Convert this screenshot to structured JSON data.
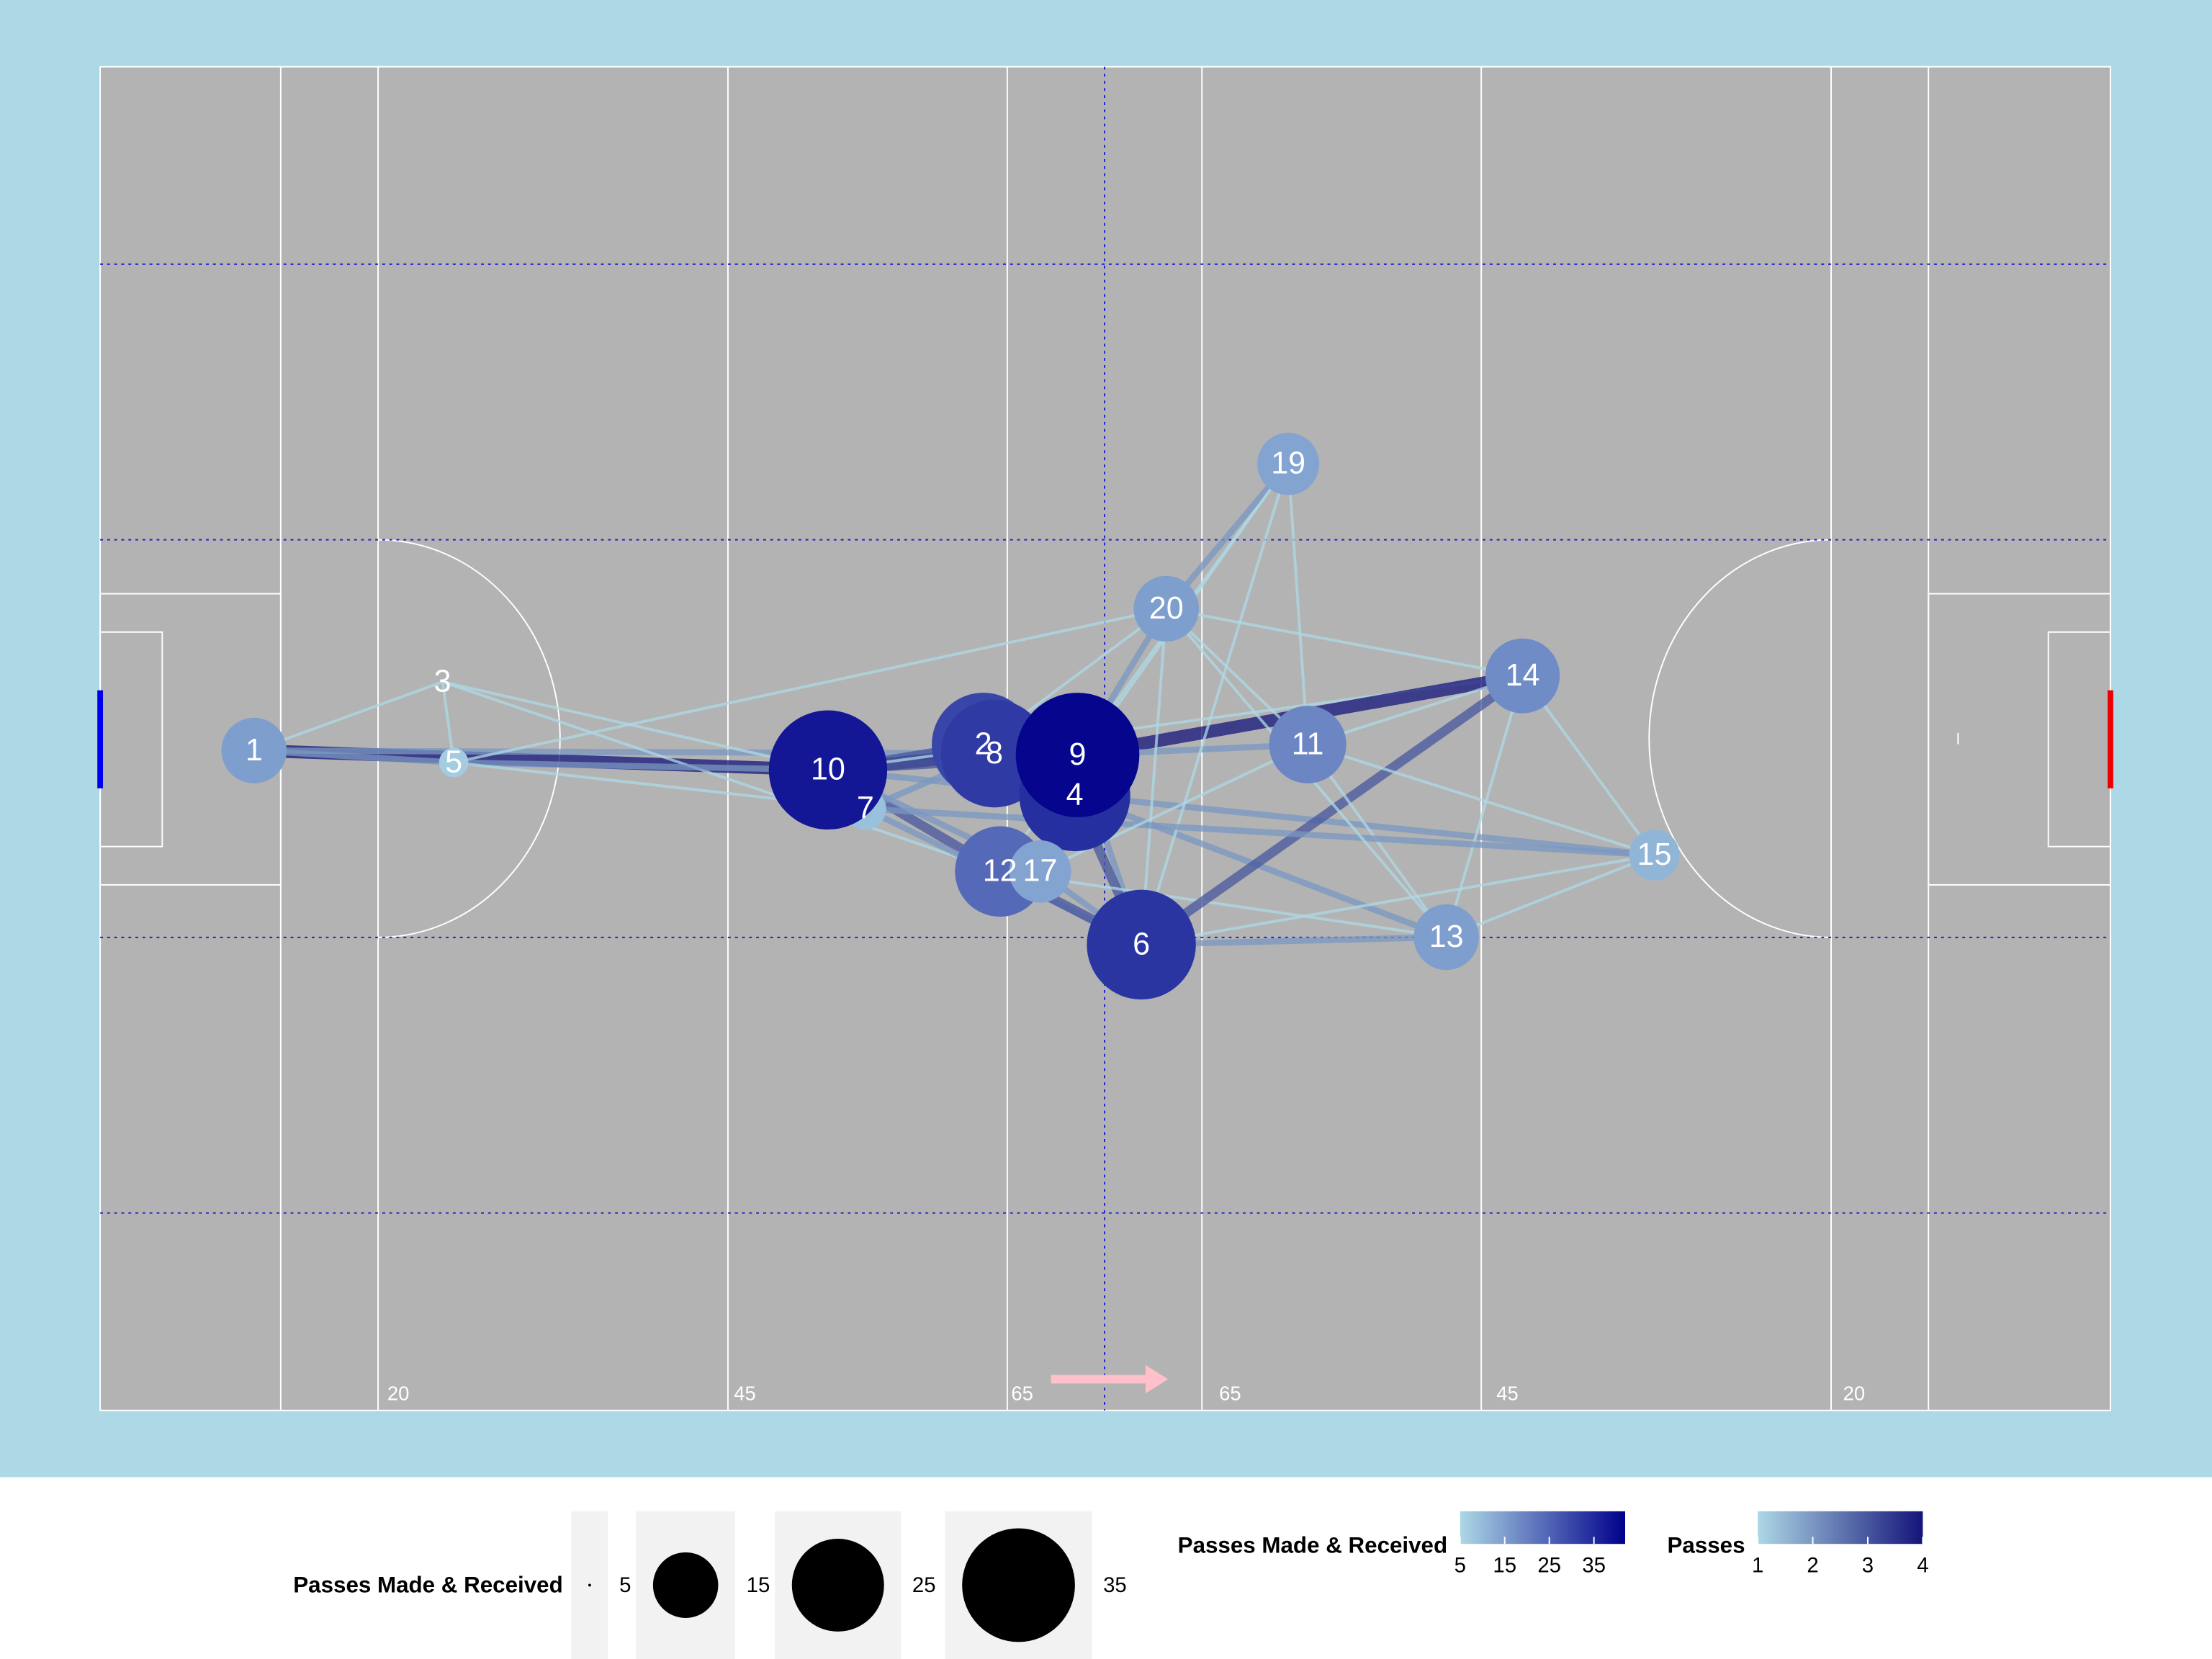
{
  "chart_data": {
    "type": "network",
    "xlim": [
      0,
      145
    ],
    "ylim": [
      0,
      90
    ],
    "pitch_labels": [
      {
        "value": 20,
        "label": "20"
      },
      {
        "value": 45,
        "label": "45"
      },
      {
        "value": 65,
        "label": "65"
      },
      {
        "value": 80,
        "label": "65"
      },
      {
        "value": 100,
        "label": "45"
      },
      {
        "value": 125,
        "label": "20"
      }
    ],
    "nodes": [
      {
        "label": "1",
        "x": 11.1,
        "y": 45.8,
        "value": 15
      },
      {
        "label": "3",
        "x": 24.7,
        "y": 41.2,
        "value": 5
      },
      {
        "label": "5",
        "x": 25.5,
        "y": 46.6,
        "value": 7
      },
      {
        "label": "7",
        "x": 55.2,
        "y": 49.7,
        "value": 9
      },
      {
        "label": "10",
        "x": 52.5,
        "y": 47.1,
        "value": 38
      },
      {
        "label": "2",
        "x": 63.7,
        "y": 45.4,
        "value": 30
      },
      {
        "label": "8",
        "x": 64.5,
        "y": 46.0,
        "value": 32
      },
      {
        "label": "4",
        "x": 70.3,
        "y": 48.8,
        "value": 34
      },
      {
        "label": "9",
        "x": 70.5,
        "y": 46.1,
        "value": 41
      },
      {
        "label": "12",
        "x": 64.9,
        "y": 53.9,
        "value": 24
      },
      {
        "label": "17",
        "x": 67.8,
        "y": 53.9,
        "value": 14
      },
      {
        "label": "6",
        "x": 75.1,
        "y": 58.8,
        "value": 33
      },
      {
        "label": "20",
        "x": 76.9,
        "y": 36.3,
        "value": 15
      },
      {
        "label": "19",
        "x": 85.7,
        "y": 26.6,
        "value": 14
      },
      {
        "label": "11",
        "x": 87.1,
        "y": 45.4,
        "value": 19
      },
      {
        "label": "14",
        "x": 102.6,
        "y": 40.8,
        "value": 18
      },
      {
        "label": "15",
        "x": 112.1,
        "y": 52.8,
        "value": 11
      },
      {
        "label": "13",
        "x": 97.1,
        "y": 58.3,
        "value": 15
      }
    ],
    "edges": [
      {
        "source": "1",
        "target": "10",
        "passes": 4
      },
      {
        "source": "1",
        "target": "5",
        "passes": 2
      },
      {
        "source": "1",
        "target": "3",
        "passes": 1
      },
      {
        "source": "1",
        "target": "8",
        "passes": 2
      },
      {
        "source": "3",
        "target": "10",
        "passes": 1
      },
      {
        "source": "3",
        "target": "5",
        "passes": 1
      },
      {
        "source": "3",
        "target": "12",
        "passes": 1
      },
      {
        "source": "5",
        "target": "10",
        "passes": 2
      },
      {
        "source": "5",
        "target": "20",
        "passes": 1
      },
      {
        "source": "5",
        "target": "7",
        "passes": 1
      },
      {
        "source": "10",
        "target": "8",
        "passes": 4
      },
      {
        "source": "10",
        "target": "2",
        "passes": 3
      },
      {
        "source": "10",
        "target": "9",
        "passes": 3
      },
      {
        "source": "10",
        "target": "7",
        "passes": 2
      },
      {
        "source": "10",
        "target": "12",
        "passes": 3
      },
      {
        "source": "10",
        "target": "17",
        "passes": 2
      },
      {
        "source": "10",
        "target": "14",
        "passes": 1
      },
      {
        "source": "10",
        "target": "4",
        "passes": 2
      },
      {
        "source": "7",
        "target": "8",
        "passes": 2
      },
      {
        "source": "7",
        "target": "6",
        "passes": 2
      },
      {
        "source": "2",
        "target": "20",
        "passes": 1
      },
      {
        "source": "2",
        "target": "9",
        "passes": 2
      },
      {
        "source": "8",
        "target": "4",
        "passes": 2
      },
      {
        "source": "9",
        "target": "14",
        "passes": 4
      },
      {
        "source": "9",
        "target": "11",
        "passes": 2
      },
      {
        "source": "9",
        "target": "20",
        "passes": 2
      },
      {
        "source": "9",
        "target": "19",
        "passes": 1
      },
      {
        "source": "9",
        "target": "6",
        "passes": 2
      },
      {
        "source": "4",
        "target": "6",
        "passes": 3
      },
      {
        "source": "4",
        "target": "13",
        "passes": 2
      },
      {
        "source": "4",
        "target": "15",
        "passes": 2
      },
      {
        "source": "12",
        "target": "6",
        "passes": 3
      },
      {
        "source": "17",
        "target": "6",
        "passes": 2
      },
      {
        "source": "12",
        "target": "13",
        "passes": 1
      },
      {
        "source": "6",
        "target": "14",
        "passes": 3
      },
      {
        "source": "6",
        "target": "13",
        "passes": 2
      },
      {
        "source": "6",
        "target": "20",
        "passes": 1
      },
      {
        "source": "6",
        "target": "19",
        "passes": 1
      },
      {
        "source": "6",
        "target": "15",
        "passes": 1
      },
      {
        "source": "20",
        "target": "19",
        "passes": 2
      },
      {
        "source": "20",
        "target": "14",
        "passes": 1
      },
      {
        "source": "20",
        "target": "11",
        "passes": 1
      },
      {
        "source": "11",
        "target": "14",
        "passes": 1
      },
      {
        "source": "11",
        "target": "13",
        "passes": 1
      },
      {
        "source": "11",
        "target": "19",
        "passes": 1
      },
      {
        "source": "11",
        "target": "15",
        "passes": 1
      },
      {
        "source": "14",
        "target": "15",
        "passes": 1
      },
      {
        "source": "14",
        "target": "13",
        "passes": 1
      },
      {
        "source": "15",
        "target": "13",
        "passes": 1
      },
      {
        "source": "15",
        "target": "7",
        "passes": 2
      },
      {
        "source": "12",
        "target": "19",
        "passes": 1
      },
      {
        "source": "17",
        "target": "11",
        "passes": 1
      },
      {
        "source": "13",
        "target": "20",
        "passes": 1
      }
    ],
    "size_legend": {
      "title": "Passes Made & Received",
      "breaks": [
        5,
        15,
        25,
        35
      ]
    },
    "color_legend": {
      "title": "Passes Made & Received",
      "ticks": [
        5,
        15,
        25,
        35
      ],
      "limits": [
        5,
        42
      ],
      "colors": [
        "#add8e6",
        "#00008b"
      ]
    },
    "edge_legend": {
      "title": "Passes",
      "ticks": [
        1,
        2,
        3,
        4
      ],
      "limits": [
        1,
        4
      ],
      "colors": [
        "#add8e6",
        "#14147a"
      ]
    }
  }
}
